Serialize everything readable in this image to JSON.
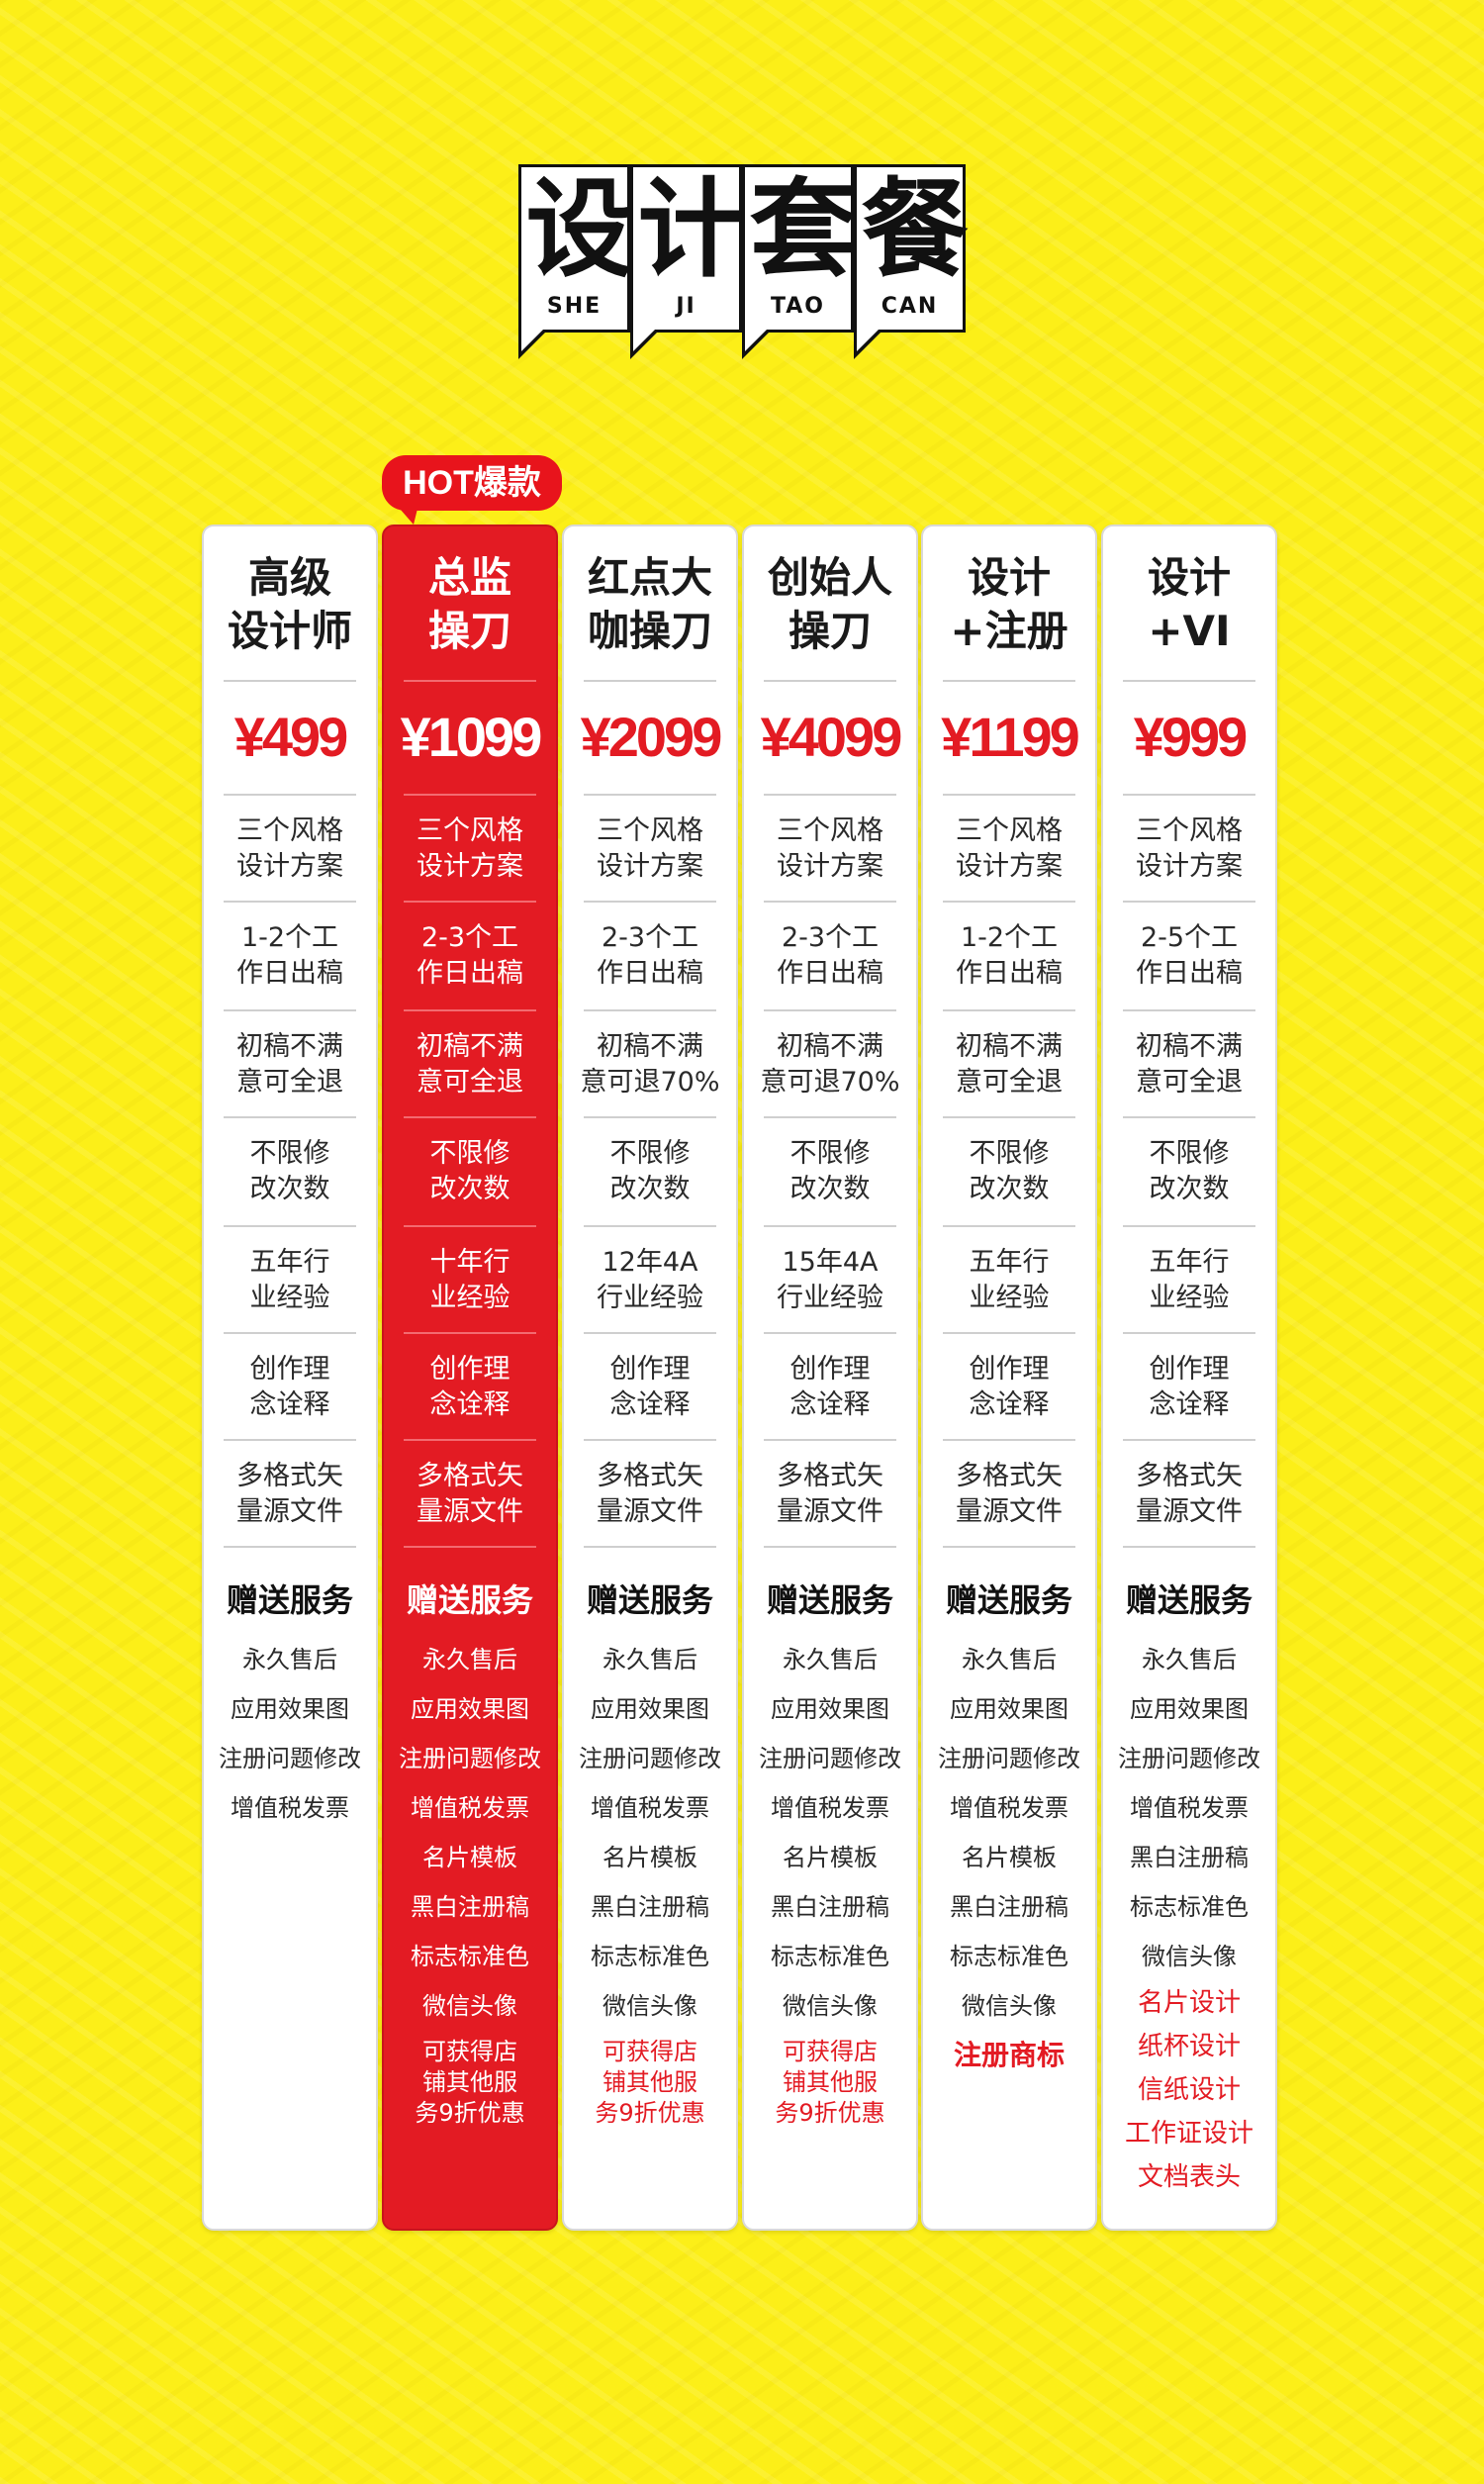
{
  "header": {
    "chars": [
      "设",
      "计",
      "套",
      "餐"
    ],
    "pinyin": [
      "SHE",
      "JI",
      "TAO",
      "CAN"
    ]
  },
  "hot_tag": "HOT爆款",
  "gift_heading": "赠送服务",
  "colors": {
    "background": "#fcef18",
    "accent_red": "#e31b23",
    "card": "#ffffff"
  },
  "columns": [
    {
      "title_lines": [
        "高级",
        "设计师"
      ],
      "price": "¥499",
      "features": [
        "三个风格\n设计方案",
        "1-2个工\n作日出稿",
        "初稿不满\n意可全退",
        "不限修\n改次数",
        "五年行\n业经验",
        "创作理\n念诠释",
        "多格式矢\n量源文件"
      ],
      "gifts": [
        "永久售后",
        "应用效果图",
        "注册问题修改",
        "增值税发票"
      ],
      "extra_red": []
    },
    {
      "title_lines": [
        "总监",
        "操刀"
      ],
      "price": "¥1099",
      "features": [
        "三个风格\n设计方案",
        "2-3个工\n作日出稿",
        "初稿不满\n意可全退",
        "不限修\n改次数",
        "十年行\n业经验",
        "创作理\n念诠释",
        "多格式矢\n量源文件"
      ],
      "gifts": [
        "永久售后",
        "应用效果图",
        "注册问题修改",
        "增值税发票",
        "名片模板",
        "黑白注册稿",
        "标志标准色",
        "微信头像"
      ],
      "note": "可获得店\n铺其他服\n务9折优惠"
    },
    {
      "title_lines": [
        "红点大",
        "咖操刀"
      ],
      "price": "¥2099",
      "features": [
        "三个风格\n设计方案",
        "2-3个工\n作日出稿",
        "初稿不满\n意可退70%",
        "不限修\n改次数",
        "12年4A\n行业经验",
        "创作理\n念诠释",
        "多格式矢\n量源文件"
      ],
      "gifts": [
        "永久售后",
        "应用效果图",
        "注册问题修改",
        "增值税发票",
        "名片模板",
        "黑白注册稿",
        "标志标准色",
        "微信头像"
      ],
      "note": "可获得店\n铺其他服\n务9折优惠"
    },
    {
      "title_lines": [
        "创始人",
        "操刀"
      ],
      "price": "¥4099",
      "features": [
        "三个风格\n设计方案",
        "2-3个工\n作日出稿",
        "初稿不满\n意可退70%",
        "不限修\n改次数",
        "15年4A\n行业经验",
        "创作理\n念诠释",
        "多格式矢\n量源文件"
      ],
      "gifts": [
        "永久售后",
        "应用效果图",
        "注册问题修改",
        "增值税发票",
        "名片模板",
        "黑白注册稿",
        "标志标准色",
        "微信头像"
      ],
      "note": "可获得店\n铺其他服\n务9折优惠"
    },
    {
      "title_lines": [
        "设计",
        "+注册"
      ],
      "price": "¥1199",
      "features": [
        "三个风格\n设计方案",
        "1-2个工\n作日出稿",
        "初稿不满\n意可全退",
        "不限修\n改次数",
        "五年行\n业经验",
        "创作理\n念诠释",
        "多格式矢\n量源文件"
      ],
      "gifts": [
        "永久售后",
        "应用效果图",
        "注册问题修改",
        "增值税发票",
        "名片模板",
        "黑白注册稿",
        "标志标准色",
        "微信头像"
      ],
      "extra_bold_red": "注册商标"
    },
    {
      "title_lines": [
        "设计",
        "+VI"
      ],
      "price": "¥999",
      "features": [
        "三个风格\n设计方案",
        "2-5个工\n作日出稿",
        "初稿不满\n意可全退",
        "不限修\n改次数",
        "五年行\n业经验",
        "创作理\n念诠释",
        "多格式矢\n量源文件"
      ],
      "gifts": [
        "永久售后",
        "应用效果图",
        "注册问题修改",
        "增值税发票",
        "黑白注册稿",
        "标志标准色",
        "微信头像"
      ],
      "extra_red": [
        "名片设计",
        "纸杯设计",
        "信纸设计",
        "工作证设计",
        "文档表头"
      ]
    }
  ]
}
